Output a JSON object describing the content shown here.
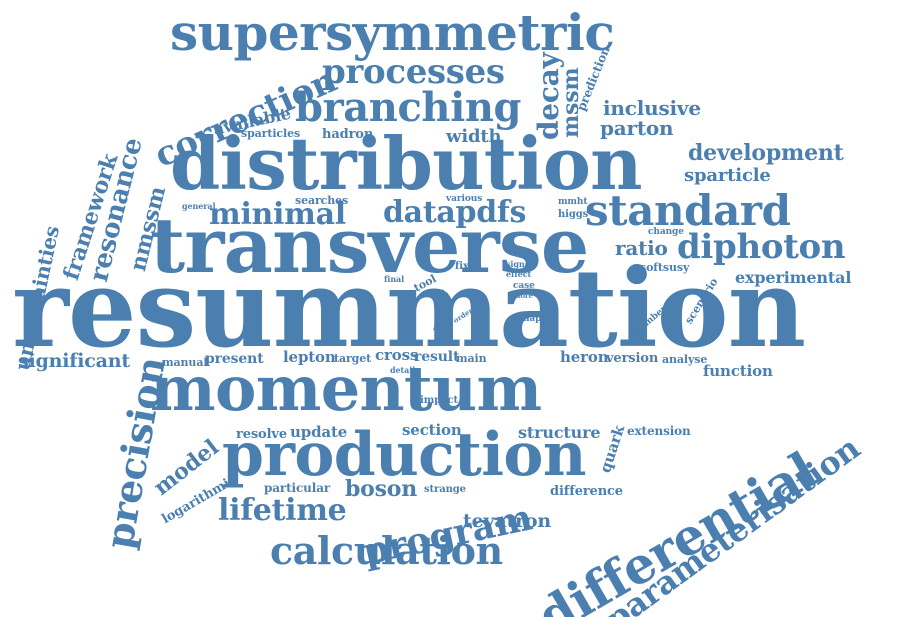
{
  "color": "#4a7fb0",
  "words": [
    "supersymmetric",
    "processes",
    "correction",
    "branching",
    "decay",
    "mssm",
    "prediction",
    "available",
    "inclusive",
    "parton",
    "sparticles",
    "hadron",
    "width",
    "distribution",
    "development",
    "framework",
    "resonance",
    "sparticle",
    "nmssm",
    "general",
    "searches",
    "various",
    "mmht",
    "higgs",
    "minimal",
    "datapdfs",
    "standard",
    "uncertainties",
    "change",
    "transverse",
    "ratio",
    "diphoton",
    "signal",
    "effect",
    "fixed",
    "final",
    "tool",
    "softsusy",
    "experimental",
    "case",
    "more",
    "scenario",
    "resummation",
    "major",
    "order",
    "shape",
    "number",
    "significant",
    "manual",
    "present",
    "lepton",
    "target",
    "cross",
    "result",
    "main",
    "heron",
    "version",
    "analyse",
    "detail",
    "function",
    "momentum",
    "impact",
    "precision",
    "model",
    "resolve",
    "update",
    "section",
    "structure",
    "quark",
    "extension",
    "production",
    "logarithmic",
    "particular",
    "boson",
    "strange",
    "difference",
    "lifetime",
    "program",
    "differential",
    "parameterisation",
    "tevatron",
    "calculation"
  ]
}
